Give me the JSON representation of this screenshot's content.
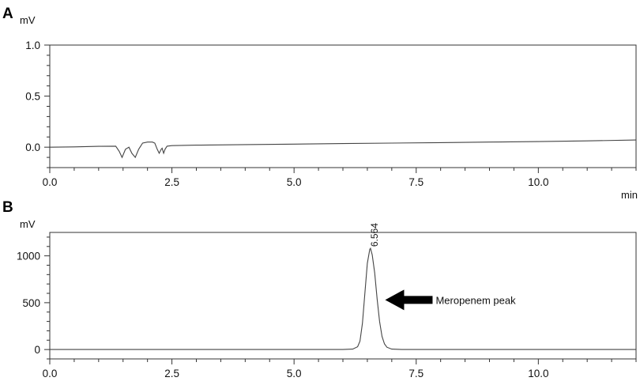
{
  "chart_data": [
    {
      "type": "line",
      "panel_label": "A",
      "ylabel": "mV",
      "xlabel": "min",
      "xlim": [
        0,
        12
      ],
      "ylim": [
        -0.2,
        1.0
      ],
      "x_ticks": [
        0.0,
        2.5,
        5.0,
        7.5,
        10.0
      ],
      "x_tick_labels": [
        "0.0",
        "2.5",
        "5.0",
        "7.5",
        "10.0"
      ],
      "y_ticks": [
        0.0,
        0.5,
        1.0
      ],
      "y_tick_labels": [
        "0.0",
        "0.5",
        "1.0"
      ],
      "grid": false,
      "series": [
        {
          "x": [
            0,
            0.5,
            1.0,
            1.35,
            1.42,
            1.48,
            1.55,
            1.62,
            1.68,
            1.75,
            1.82,
            1.9,
            2.0,
            2.1,
            2.15,
            2.2,
            2.24,
            2.28,
            2.3,
            2.33,
            2.36,
            2.4,
            2.5,
            3.0,
            4.0,
            5.0,
            6.0,
            7.0,
            8.0,
            9.0,
            10.0,
            11.0,
            12.0
          ],
          "y": [
            0.0,
            0.003,
            0.008,
            0.01,
            -0.04,
            -0.1,
            -0.02,
            0.0,
            -0.06,
            -0.1,
            -0.02,
            0.04,
            0.05,
            0.05,
            0.04,
            -0.02,
            -0.06,
            -0.02,
            -0.01,
            -0.06,
            -0.02,
            0.01,
            0.015,
            0.02,
            0.025,
            0.03,
            0.035,
            0.04,
            0.045,
            0.05,
            0.055,
            0.062,
            0.07
          ]
        }
      ]
    },
    {
      "type": "line",
      "panel_label": "B",
      "ylabel": "mV",
      "xlabel": "",
      "xlim": [
        0,
        12
      ],
      "ylim": [
        -100,
        1250
      ],
      "x_ticks": [
        0.0,
        2.5,
        5.0,
        7.5,
        10.0
      ],
      "x_tick_labels": [
        "0.0",
        "2.5",
        "5.0",
        "7.5",
        "10.0"
      ],
      "y_ticks": [
        0,
        500,
        1000
      ],
      "y_tick_labels": [
        "0",
        "500",
        "1000"
      ],
      "grid": false,
      "series": [
        {
          "x": [
            0,
            6.0,
            6.2,
            6.3,
            6.35,
            6.4,
            6.45,
            6.5,
            6.55,
            6.564,
            6.6,
            6.65,
            6.7,
            6.75,
            6.8,
            6.85,
            6.9,
            7.0,
            7.2,
            12.0
          ],
          "y": [
            0,
            0,
            5,
            30,
            90,
            280,
            600,
            920,
            1070,
            1080,
            1010,
            820,
            540,
            300,
            140,
            60,
            25,
            5,
            0,
            0
          ]
        }
      ],
      "peak_label": {
        "x": 6.564,
        "text": "6.564"
      },
      "annotation": {
        "text": "Meropenem peak",
        "x": 6.8,
        "y": 530
      }
    }
  ]
}
